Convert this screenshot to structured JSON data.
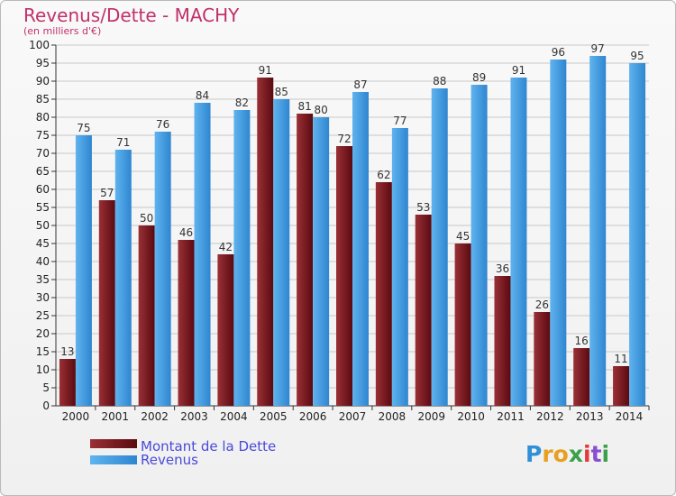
{
  "chart_data": {
    "type": "bar",
    "title": "Revenus/Dette - MACHY",
    "subtitle": "(en milliers d'€)",
    "categories": [
      "2000",
      "2001",
      "2002",
      "2003",
      "2004",
      "2005",
      "2006",
      "2007",
      "2008",
      "2009",
      "2010",
      "2011",
      "2012",
      "2013",
      "2014"
    ],
    "series": [
      {
        "name": "Montant de la Dette",
        "color": "#7a1a20",
        "values": [
          13,
          57,
          50,
          46,
          42,
          91,
          81,
          72,
          62,
          53,
          45,
          36,
          26,
          16,
          11
        ]
      },
      {
        "name": "Revenus",
        "color": "#4aa0e6",
        "values": [
          75,
          71,
          76,
          84,
          82,
          85,
          80,
          87,
          77,
          88,
          89,
          91,
          96,
          97,
          95
        ]
      }
    ],
    "ylim": [
      0,
      100
    ],
    "ytick_step": 5,
    "grid": true,
    "legend_position": "bottom-left"
  },
  "brand": {
    "letters": [
      "P",
      "r",
      "o",
      "x",
      "i",
      "t",
      "i"
    ],
    "colors": [
      "#2f8fd8",
      "#e8a020",
      "#e8a020",
      "#3aa14a",
      "#e13b3b",
      "#8a4fd0",
      "#3aa14a"
    ]
  }
}
